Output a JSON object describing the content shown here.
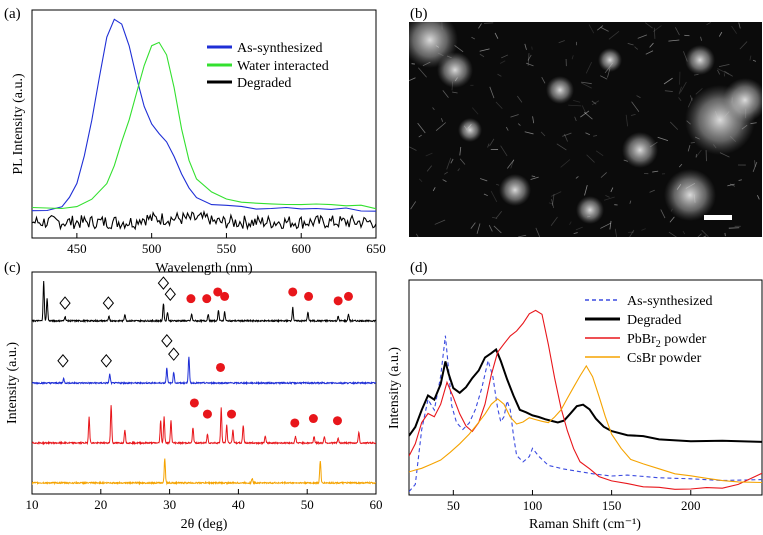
{
  "chart_data": [
    {
      "panel": "(a)",
      "type": "line",
      "xlabel": "Wavelength (nm)",
      "ylabel": "PL Intensity (a.u.)",
      "xlim": [
        420,
        650
      ],
      "ylim": [
        0,
        1.0
      ],
      "xticks": [
        450,
        500,
        550,
        600,
        650
      ],
      "legend": [
        {
          "name": "As-synthesized",
          "color": "#1f2fd6"
        },
        {
          "name": "Water interacted",
          "color": "#33e02f"
        },
        {
          "name": "Degraded",
          "color": "#000000"
        }
      ],
      "series": [
        {
          "name": "As-synthesized",
          "color": "#1f2fd6",
          "x": [
            420,
            430,
            440,
            445,
            450,
            455,
            460,
            465,
            470,
            475,
            480,
            485,
            490,
            495,
            500,
            505,
            510,
            515,
            520,
            525,
            530,
            540,
            550,
            560,
            570,
            580,
            590,
            600,
            610,
            620,
            630,
            640,
            650
          ],
          "y": [
            0.12,
            0.12,
            0.14,
            0.18,
            0.24,
            0.36,
            0.52,
            0.7,
            0.88,
            0.96,
            0.94,
            0.84,
            0.7,
            0.58,
            0.5,
            0.46,
            0.42,
            0.36,
            0.28,
            0.22,
            0.18,
            0.15,
            0.14,
            0.135,
            0.13,
            0.13,
            0.13,
            0.13,
            0.13,
            0.125,
            0.13,
            0.12,
            0.12
          ]
        },
        {
          "name": "Water interacted",
          "color": "#33e02f",
          "x": [
            420,
            440,
            450,
            460,
            470,
            475,
            480,
            485,
            490,
            495,
            500,
            505,
            510,
            515,
            520,
            525,
            530,
            540,
            550,
            560,
            570,
            580,
            590,
            600,
            610,
            620,
            630,
            640,
            650
          ],
          "y": [
            0.13,
            0.13,
            0.14,
            0.17,
            0.24,
            0.32,
            0.42,
            0.52,
            0.64,
            0.76,
            0.84,
            0.86,
            0.8,
            0.66,
            0.48,
            0.34,
            0.26,
            0.2,
            0.17,
            0.16,
            0.155,
            0.15,
            0.15,
            0.15,
            0.15,
            0.145,
            0.14,
            0.14,
            0.13
          ]
        },
        {
          "name": "Degraded",
          "color": "#000000",
          "noise": true,
          "x": [
            420,
            650
          ],
          "y": [
            0.07,
            0.07
          ]
        }
      ]
    },
    {
      "panel": "(b)",
      "type": "image",
      "description_label": "(b)"
    },
    {
      "panel": "(c)",
      "type": "line",
      "xlabel": "2θ (deg)",
      "ylabel": "Intensity (a.u.)",
      "xlim": [
        10,
        60
      ],
      "xticks": [
        10,
        20,
        30,
        40,
        50,
        60
      ],
      "series": [
        {
          "name": "Degraded",
          "color": "#000000",
          "offset": 0.78,
          "peaks": [
            [
              11.7,
              0.18
            ],
            [
              12.2,
              0.1
            ],
            [
              14.8,
              0.02
            ],
            [
              21.2,
              0.02
            ],
            [
              23.5,
              0.03
            ],
            [
              29.1,
              0.08
            ],
            [
              29.7,
              0.04
            ],
            [
              33.2,
              0.03
            ],
            [
              35.6,
              0.03
            ],
            [
              37.1,
              0.05
            ],
            [
              38.0,
              0.04
            ],
            [
              47.9,
              0.06
            ],
            [
              50.1,
              0.04
            ],
            [
              54.5,
              0.02
            ],
            [
              56.0,
              0.03
            ]
          ]
        },
        {
          "name": "As-synthesized",
          "color": "#1f2fd6",
          "offset": 0.5,
          "peaks": [
            [
              14.6,
              0.02
            ],
            [
              21.3,
              0.04
            ],
            [
              29.6,
              0.07
            ],
            [
              30.6,
              0.05
            ],
            [
              32.8,
              0.12
            ]
          ]
        },
        {
          "name": "PbBr2 powder",
          "color": "#e8161b",
          "offset": 0.23,
          "peaks": [
            [
              18.3,
              0.12
            ],
            [
              21.5,
              0.17
            ],
            [
              23.5,
              0.06
            ],
            [
              28.7,
              0.1
            ],
            [
              29.2,
              0.12
            ],
            [
              30.2,
              0.1
            ],
            [
              33.4,
              0.07
            ],
            [
              35.5,
              0.04
            ],
            [
              37.5,
              0.16
            ],
            [
              38.3,
              0.08
            ],
            [
              39.2,
              0.06
            ],
            [
              40.7,
              0.08
            ],
            [
              43.9,
              0.03
            ],
            [
              48.3,
              0.03
            ],
            [
              51.0,
              0.03
            ],
            [
              52.5,
              0.03
            ],
            [
              54.5,
              0.02
            ],
            [
              57.5,
              0.05
            ]
          ]
        },
        {
          "name": "CsBr powder",
          "color": "#f5a300",
          "offset": 0.05,
          "peaks": [
            [
              29.3,
              0.11
            ],
            [
              42.0,
              0.02
            ],
            [
              51.9,
              0.1
            ]
          ]
        }
      ],
      "markers": {
        "diamond": [
          [
            14.8,
            0.86
          ],
          [
            21.1,
            0.86
          ],
          [
            29.1,
            0.95
          ],
          [
            30.1,
            0.9
          ],
          [
            14.5,
            0.6
          ],
          [
            20.8,
            0.6
          ],
          [
            29.6,
            0.69
          ],
          [
            30.6,
            0.63
          ]
        ],
        "circle": [
          [
            33.1,
            0.88
          ],
          [
            35.4,
            0.88
          ],
          [
            37.0,
            0.91
          ],
          [
            38.0,
            0.89
          ],
          [
            47.9,
            0.91
          ],
          [
            50.2,
            0.89
          ],
          [
            54.5,
            0.87
          ],
          [
            56.0,
            0.89
          ],
          [
            37.4,
            0.57
          ],
          [
            33.6,
            0.41
          ],
          [
            35.5,
            0.36
          ],
          [
            39.0,
            0.36
          ],
          [
            48.2,
            0.32
          ],
          [
            50.9,
            0.34
          ],
          [
            54.4,
            0.33
          ]
        ]
      }
    },
    {
      "panel": "(d)",
      "type": "line",
      "xlabel": "Raman Shift (cm⁻¹)",
      "ylabel": "Intensity (a.u.)",
      "xlim": [
        22,
        245
      ],
      "xticks": [
        50,
        100,
        150,
        200
      ],
      "legend": [
        {
          "name": "As-synthesized",
          "color": "#3b4be0",
          "dashed": true
        },
        {
          "name": "Degraded",
          "color": "#000000",
          "bold": true
        },
        {
          "name": "PbBr",
          "sub": "2",
          "suffix": " powder",
          "color": "#e8161b"
        },
        {
          "name": "CsBr powder",
          "color": "#f5a300",
          "bold_suffix": true
        }
      ],
      "series": [
        {
          "name": "As-synthesized",
          "color": "#3b4be0",
          "dashed": true,
          "x": [
            22,
            26,
            30,
            34,
            38,
            42,
            45,
            47,
            49,
            52,
            56,
            60,
            64,
            68,
            72,
            75,
            78,
            80,
            82,
            84,
            86,
            88,
            90,
            94,
            98,
            100,
            104,
            110,
            120,
            130,
            140,
            150,
            160,
            180,
            200,
            220,
            245
          ],
          "y": [
            0.02,
            0.05,
            0.3,
            0.44,
            0.4,
            0.55,
            0.74,
            0.58,
            0.42,
            0.34,
            0.3,
            0.33,
            0.4,
            0.5,
            0.62,
            0.55,
            0.4,
            0.34,
            0.36,
            0.44,
            0.4,
            0.28,
            0.18,
            0.15,
            0.18,
            0.22,
            0.18,
            0.14,
            0.12,
            0.11,
            0.1,
            0.09,
            0.09,
            0.08,
            0.08,
            0.07,
            0.07
          ]
        },
        {
          "name": "Degraded",
          "color": "#000000",
          "x": [
            22,
            26,
            30,
            34,
            38,
            42,
            45,
            47,
            50,
            54,
            58,
            62,
            66,
            70,
            74,
            77,
            80,
            84,
            88,
            92,
            96,
            100,
            104,
            108,
            112,
            116,
            120,
            124,
            128,
            132,
            136,
            140,
            145,
            150,
            160,
            170,
            180,
            200,
            220,
            245
          ],
          "y": [
            0.28,
            0.32,
            0.4,
            0.46,
            0.44,
            0.52,
            0.62,
            0.56,
            0.5,
            0.48,
            0.5,
            0.54,
            0.58,
            0.64,
            0.66,
            0.68,
            0.62,
            0.54,
            0.46,
            0.4,
            0.38,
            0.37,
            0.36,
            0.35,
            0.34,
            0.34,
            0.35,
            0.38,
            0.41,
            0.42,
            0.4,
            0.36,
            0.32,
            0.3,
            0.28,
            0.27,
            0.26,
            0.255,
            0.25,
            0.25
          ]
        },
        {
          "name": "PbBr2 powder",
          "color": "#e8161b",
          "x": [
            22,
            26,
            30,
            34,
            38,
            42,
            46,
            50,
            54,
            58,
            62,
            66,
            70,
            74,
            78,
            82,
            86,
            90,
            94,
            98,
            102,
            106,
            110,
            114,
            118,
            122,
            126,
            130,
            136,
            142,
            150,
            160,
            170,
            180,
            190,
            200,
            210,
            220,
            230,
            245
          ],
          "y": [
            0.18,
            0.24,
            0.34,
            0.38,
            0.36,
            0.42,
            0.52,
            0.46,
            0.38,
            0.32,
            0.3,
            0.34,
            0.42,
            0.56,
            0.66,
            0.7,
            0.74,
            0.76,
            0.8,
            0.84,
            0.86,
            0.84,
            0.7,
            0.54,
            0.4,
            0.3,
            0.22,
            0.16,
            0.12,
            0.09,
            0.07,
            0.05,
            0.04,
            0.035,
            0.03,
            0.03,
            0.03,
            0.035,
            0.05,
            0.1
          ]
        },
        {
          "name": "CsBr powder",
          "color": "#f5a300",
          "x": [
            22,
            26,
            30,
            36,
            42,
            48,
            54,
            60,
            66,
            70,
            74,
            78,
            82,
            86,
            90,
            94,
            98,
            102,
            106,
            110,
            114,
            118,
            122,
            126,
            130,
            134,
            138,
            142,
            146,
            150,
            156,
            162,
            170,
            180,
            190,
            200,
            210,
            220,
            230,
            245
          ],
          "y": [
            0.11,
            0.12,
            0.12,
            0.14,
            0.16,
            0.2,
            0.24,
            0.28,
            0.34,
            0.38,
            0.42,
            0.45,
            0.42,
            0.36,
            0.33,
            0.34,
            0.36,
            0.35,
            0.34,
            0.34,
            0.36,
            0.4,
            0.45,
            0.5,
            0.55,
            0.6,
            0.55,
            0.46,
            0.36,
            0.28,
            0.22,
            0.17,
            0.14,
            0.12,
            0.1,
            0.09,
            0.08,
            0.07,
            0.06,
            0.06
          ]
        }
      ]
    }
  ]
}
